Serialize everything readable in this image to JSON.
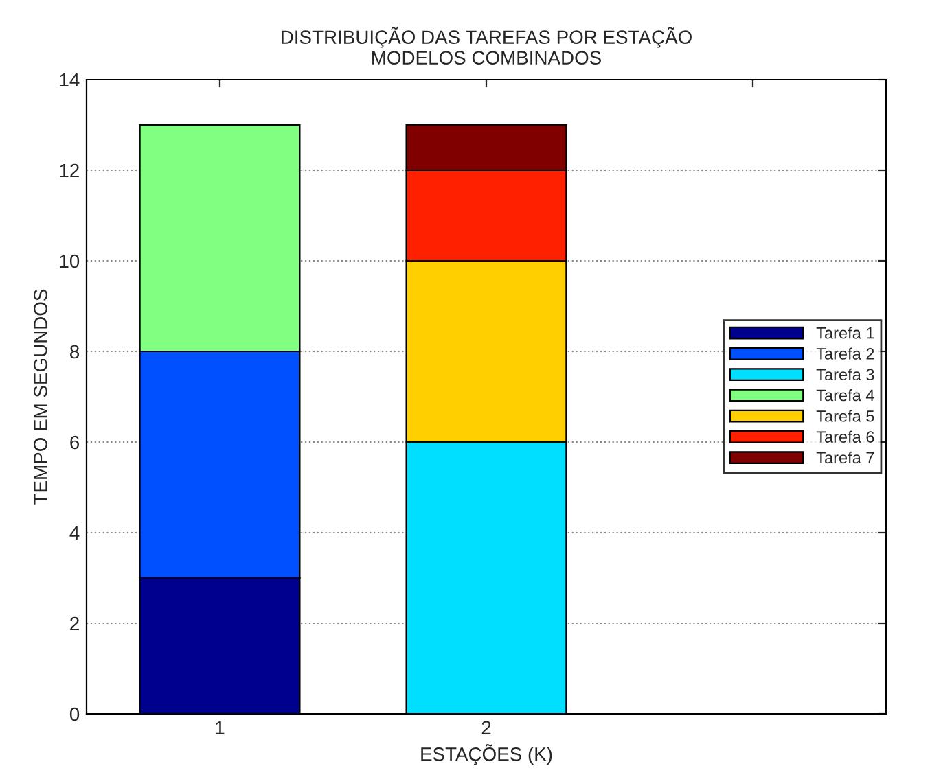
{
  "chart_data": {
    "type": "bar",
    "title": "DISTRIBUIÇÃO DAS TAREFAS POR ESTAÇÃO\nMODELOS COMBINADOS",
    "xlabel": "ESTAÇÕES (K)",
    "ylabel": "TEMPO EM SEGUNDOS",
    "categories": [
      "1",
      "2",
      null
    ],
    "stacked": true,
    "series": [
      {
        "name": "Tarefa 1",
        "color": "#00008f",
        "values": [
          3,
          null,
          null
        ]
      },
      {
        "name": "Tarefa 2",
        "color": "#0050ff",
        "values": [
          5,
          null,
          null
        ]
      },
      {
        "name": "Tarefa 3",
        "color": "#00dfff",
        "values": [
          null,
          6,
          null
        ]
      },
      {
        "name": "Tarefa 4",
        "color": "#80ff80",
        "values": [
          5,
          null,
          null
        ]
      },
      {
        "name": "Tarefa 5",
        "color": "#ffcf00",
        "values": [
          null,
          4,
          null
        ]
      },
      {
        "name": "Tarefa 6",
        "color": "#ff2000",
        "values": [
          null,
          2,
          null
        ]
      },
      {
        "name": "Tarefa 7",
        "color": "#800000",
        "values": [
          null,
          1,
          null
        ]
      }
    ],
    "ylim": [
      0,
      14
    ],
    "yticks": [
      0,
      2,
      4,
      6,
      8,
      10,
      12,
      14
    ],
    "grid": "y",
    "legend": "right"
  }
}
